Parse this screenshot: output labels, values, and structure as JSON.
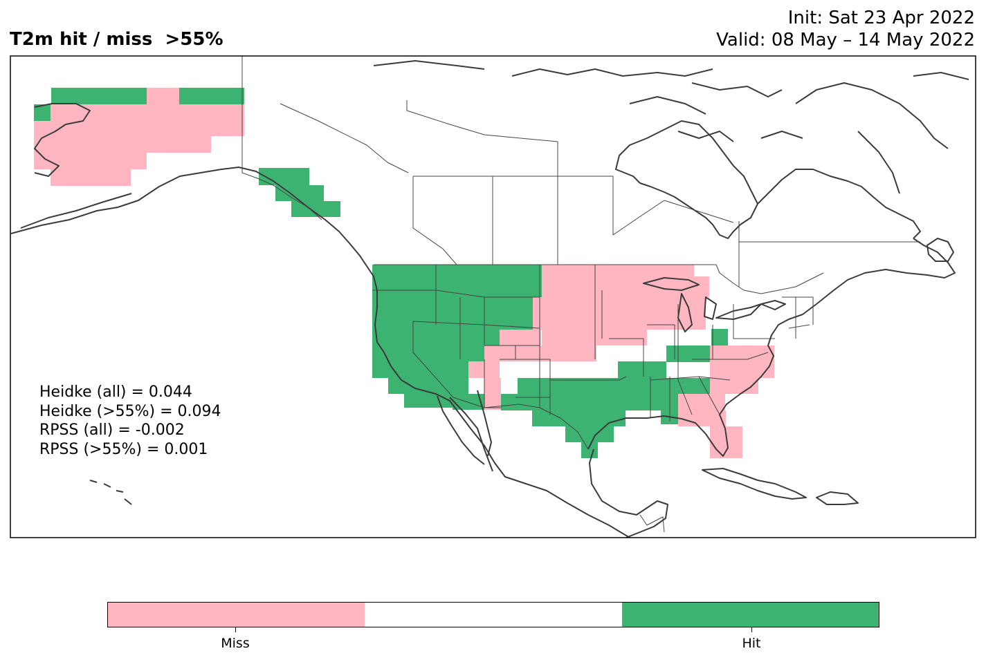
{
  "title": "T2m hit / miss  >55%",
  "init": "Init: Sat 23 Apr 2022",
  "valid": "Valid: 08 May – 14 May 2022",
  "stats": [
    "Heidke (all) = 0.044",
    "Heidke (>55%) = 0.094",
    "RPSS (all) = -0.002",
    "RPSS (>55%) = 0.001"
  ],
  "colors": {
    "miss": "#ffb6c1",
    "neutral": "#ffffff",
    "hit": "#3cb371",
    "border": "#3a3a3a"
  },
  "legend": {
    "miss_label": "Miss",
    "hit_label": "Hit"
  }
}
